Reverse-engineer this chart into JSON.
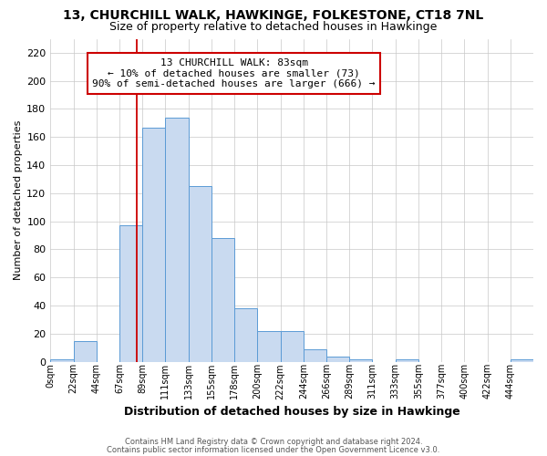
{
  "title": "13, CHURCHILL WALK, HAWKINGE, FOLKESTONE, CT18 7NL",
  "subtitle": "Size of property relative to detached houses in Hawkinge",
  "xlabel": "Distribution of detached houses by size in Hawkinge",
  "ylabel": "Number of detached properties",
  "bar_color": "#c9daf0",
  "bar_edge_color": "#5b9bd5",
  "bin_labels": [
    "0sqm",
    "22sqm",
    "44sqm",
    "67sqm",
    "89sqm",
    "111sqm",
    "133sqm",
    "155sqm",
    "178sqm",
    "200sqm",
    "222sqm",
    "244sqm",
    "266sqm",
    "289sqm",
    "311sqm",
    "333sqm",
    "355sqm",
    "377sqm",
    "400sqm",
    "422sqm",
    "444sqm"
  ],
  "bar_heights": [
    2,
    15,
    0,
    97,
    167,
    174,
    125,
    88,
    38,
    22,
    22,
    9,
    4,
    2,
    0,
    2,
    0,
    0,
    0,
    0,
    2
  ],
  "ylim": [
    0,
    230
  ],
  "yticks": [
    0,
    20,
    40,
    60,
    80,
    100,
    120,
    140,
    160,
    180,
    200,
    220
  ],
  "property_sqm": 83,
  "bin_width": 22,
  "annotation_text": "13 CHURCHILL WALK: 83sqm\n← 10% of detached houses are smaller (73)\n90% of semi-detached houses are larger (666) →",
  "annotation_border_color": "#cc0000",
  "vline_color": "#cc0000",
  "footer_line1": "Contains HM Land Registry data © Crown copyright and database right 2024.",
  "footer_line2": "Contains public sector information licensed under the Open Government Licence v3.0.",
  "background_color": "#ffffff",
  "grid_color": "#c8c8c8",
  "title_fontsize": 10,
  "subtitle_fontsize": 9,
  "ylabel_fontsize": 8,
  "xlabel_fontsize": 9,
  "tick_fontsize": 7,
  "footer_fontsize": 6,
  "annot_fontsize": 8
}
